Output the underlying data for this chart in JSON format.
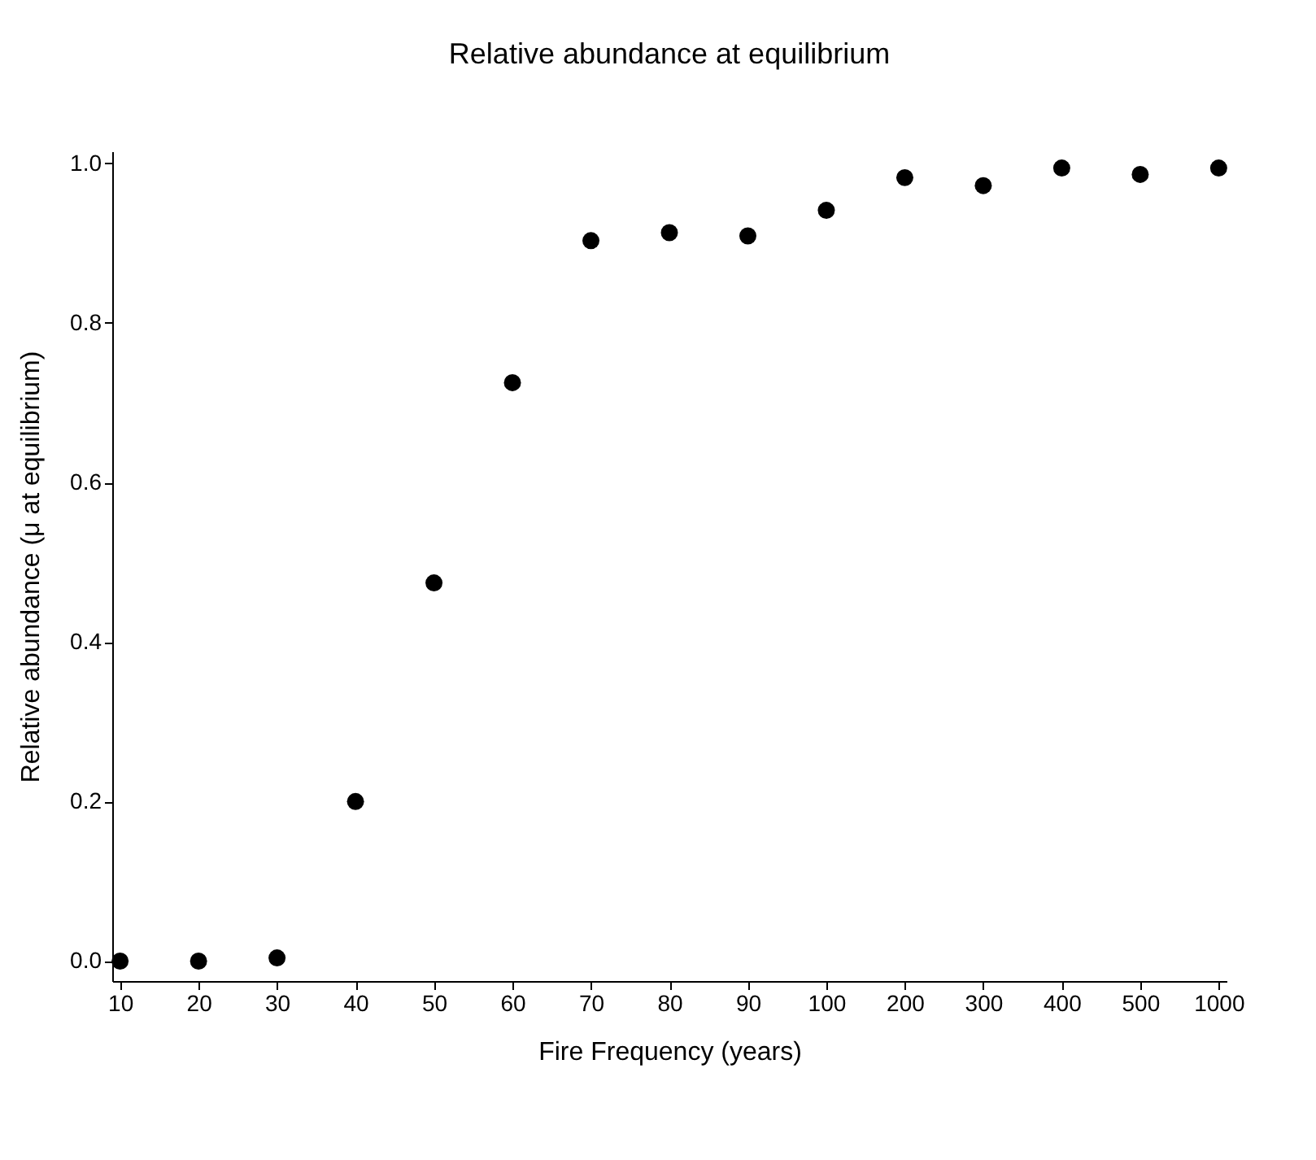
{
  "chart_data": {
    "type": "scatter",
    "title": "Relative abundance at equilibrium",
    "xlabel": "Fire Frequency (years)",
    "ylabel": "Relative abundance (μ at equilibrium)",
    "categories": [
      "10",
      "20",
      "30",
      "40",
      "50",
      "60",
      "70",
      "80",
      "90",
      "100",
      "200",
      "300",
      "400",
      "500",
      "1000"
    ],
    "series": [
      {
        "color": "#000000",
        "values": [
          0.0,
          0.0,
          0.004,
          0.2,
          0.474,
          0.725,
          0.903,
          0.913,
          0.909,
          0.941,
          0.982,
          0.972,
          0.994,
          0.986,
          0.994
        ]
      }
    ],
    "ylim": [
      -0.025,
      1.015
    ],
    "yticks": [
      {
        "value": 0,
        "label": "0.0"
      },
      {
        "value": 0.2,
        "label": "0.2"
      },
      {
        "value": 0.4,
        "label": "0.4"
      },
      {
        "value": 0.6,
        "label": "0.6"
      },
      {
        "value": 0.8,
        "label": "0.8"
      },
      {
        "value": 1,
        "label": "1.0"
      }
    ],
    "marker": "circle",
    "grid": false
  }
}
